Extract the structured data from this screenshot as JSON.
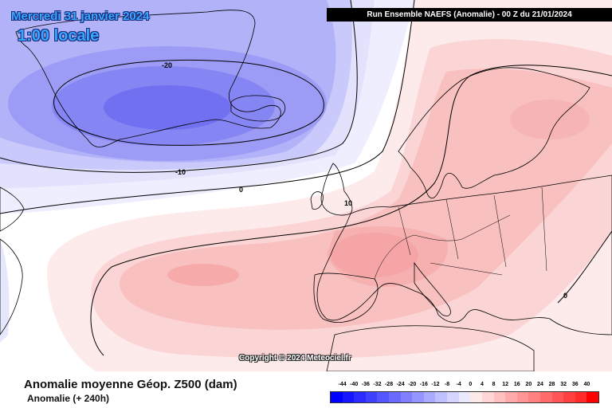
{
  "header": {
    "date": "Mercredi 31 janvier 2024",
    "time": "1:00 locale",
    "run": "Run Ensemble NAEFS  (Anomalie)  - 00 Z du 21/01/2024"
  },
  "footer": {
    "copyright": "Copyright © 2024 Meteociel.fr",
    "title": "Anomalie moyenne Géop. Z500 (dam)",
    "subtitle": "Anomalie (+ 240h)"
  },
  "contours": {
    "minus20": "-20",
    "minus10": "-10",
    "zero_west": "0",
    "zero_east": "0",
    "plus10": "10"
  },
  "legend": {
    "ticks": [
      "-44",
      "-40",
      "-36",
      "-32",
      "-28",
      "-24",
      "-20",
      "-16",
      "-12",
      "-8",
      "-4",
      "0",
      "4",
      "8",
      "12",
      "16",
      "20",
      "24",
      "28",
      "32",
      "36",
      "40"
    ],
    "colors": [
      "#0000ff",
      "#1515ff",
      "#2b2bff",
      "#4040ff",
      "#5555ff",
      "#6a6aff",
      "#8080ff",
      "#9595ff",
      "#aaaaff",
      "#c0c0ff",
      "#d5d5ff",
      "#eaeaff",
      "#ffeaea",
      "#ffd5d5",
      "#ffc0c0",
      "#ffaaaa",
      "#ff9595",
      "#ff8080",
      "#ff6a6a",
      "#ff5555",
      "#ff4040",
      "#ff2b2b",
      "#ff0000"
    ]
  },
  "colors": {
    "negative_core": "#6f6ff0",
    "negative_mid": "#9a9af7",
    "negative_light": "#c6c6fb",
    "negative_pale": "#e6e6fd",
    "positive_pale": "#fde9e9",
    "positive_light": "#fbd1d1",
    "positive_mid": "#f8b6b6",
    "positive_core": "#f59a9a"
  }
}
